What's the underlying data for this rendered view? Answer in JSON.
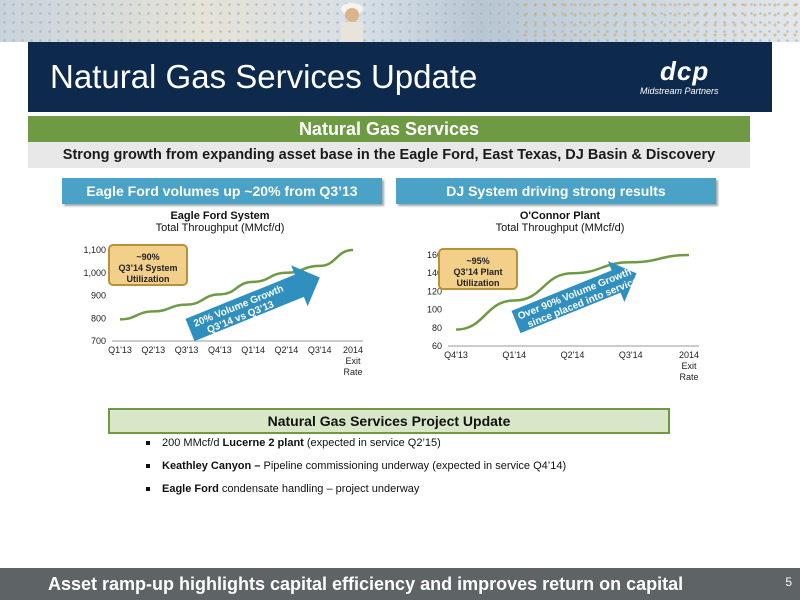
{
  "header": {
    "title": "Natural Gas Services Update",
    "logo_brand": "dcp",
    "logo_sub": "Midstream Partners"
  },
  "section": {
    "heading": "Natural Gas Services",
    "subtitle": "Strong growth from expanding asset base in the Eagle Ford, East Texas, DJ Basin & Discovery"
  },
  "left_panel": {
    "label": "Eagle Ford volumes up ~20% from Q3’13",
    "callout_lines": [
      "~90%",
      "Q3’14 System",
      "Utilization"
    ],
    "arrow_lines": [
      "20% Volume Growth",
      "Q3’14 vs Q3’13"
    ]
  },
  "right_panel": {
    "label": "DJ System driving strong results",
    "callout_lines": [
      "~95%",
      "Q3’14 Plant",
      "Utilization"
    ],
    "arrow_lines": [
      "Over 90% Volume Growth",
      "since placed into service"
    ]
  },
  "chart_data": [
    {
      "type": "line",
      "title": "Eagle Ford System",
      "subtitle": "Total Throughput (MMcf/d)",
      "categories": [
        "Q1'13",
        "Q2'13",
        "Q3'13",
        "Q4'13",
        "Q1'14",
        "Q2'14",
        "Q3'14",
        "2014 Exit Rate"
      ],
      "y_ticks": [
        "700",
        "800",
        "900",
        "1,000",
        "1,100"
      ],
      "values": [
        795,
        830,
        860,
        905,
        960,
        1000,
        1030,
        1100
      ],
      "ylim": [
        700,
        1100
      ],
      "color": "#6f9a44"
    },
    {
      "type": "line",
      "title": "O'Connor Plant",
      "subtitle": "Total Throughput (MMcf/d)",
      "categories": [
        "Q4'13",
        "Q1'14",
        "Q2'14",
        "Q3'14",
        "2014 Exit Rate"
      ],
      "y_ticks": [
        "60",
        "80",
        "100",
        "120",
        "140",
        "160"
      ],
      "values": [
        78,
        110,
        140,
        152,
        160
      ],
      "ylim": [
        60,
        160
      ],
      "color": "#6f9a44"
    }
  ],
  "project": {
    "heading": "Natural Gas Services Project Update",
    "bullets": [
      {
        "bold": "",
        "pre": "200 MMcf/d ",
        "bold_mid": "Lucerne 2 plant",
        "rest": "  (expected in service Q2’15)"
      },
      {
        "bold": "Keathley Canyon –",
        "pre": "",
        "bold_mid": "",
        "rest": " Pipeline commissioning underway (expected in service Q4’14)"
      },
      {
        "bold": "Eagle Ford",
        "pre": "",
        "bold_mid": "",
        "rest": " condensate handling – project underway"
      }
    ]
  },
  "footer": {
    "text": "Asset ramp-up highlights capital efficiency and improves return on capital",
    "page": "5"
  }
}
